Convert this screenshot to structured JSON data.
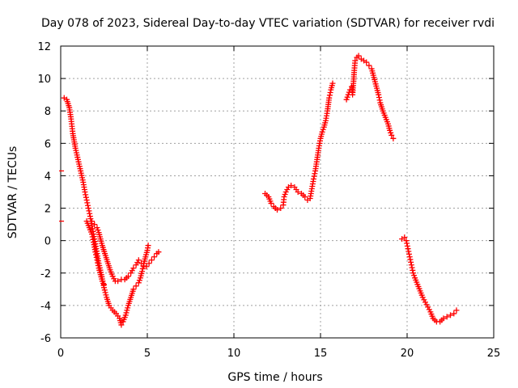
{
  "chart_data": {
    "type": "scatter",
    "title": "Day 078 of 2023, Sidereal Day-to-day VTEC variation (SDTVAR) for receiver rvdi",
    "xlabel": "GPS time / hours",
    "ylabel": "SDTVAR / TECUs",
    "xlim": [
      0,
      25
    ],
    "ylim": [
      -6,
      12
    ],
    "xticks": [
      0,
      5,
      10,
      15,
      20,
      25
    ],
    "yticks": [
      -6,
      -4,
      -2,
      0,
      2,
      4,
      6,
      8,
      10,
      12
    ],
    "xtick_labels": [
      "0",
      "5",
      "10",
      "15",
      "20",
      "25"
    ],
    "ytick_labels": [
      "-6",
      "-4",
      "-2",
      "0",
      "2",
      "4",
      "6",
      "8",
      "10",
      "12"
    ],
    "grid": true,
    "marker": "+",
    "color": "#ff0000",
    "isolated_points": [
      {
        "x": 0.05,
        "y": 4.3
      },
      {
        "x": 0.05,
        "y": 1.2
      }
    ],
    "segments": [
      {
        "name": "arc-1a",
        "points": [
          [
            0.2,
            8.8
          ],
          [
            0.35,
            8.7
          ],
          [
            0.5,
            8.2
          ],
          [
            0.6,
            7.5
          ],
          [
            0.7,
            6.6
          ],
          [
            0.85,
            5.7
          ],
          [
            1.0,
            5.0
          ],
          [
            1.15,
            4.3
          ],
          [
            1.3,
            3.6
          ],
          [
            1.4,
            3.0
          ],
          [
            1.5,
            2.5
          ],
          [
            1.6,
            2.0
          ],
          [
            1.7,
            1.5
          ],
          [
            1.8,
            0.9
          ],
          [
            1.9,
            0.4
          ],
          [
            2.0,
            -0.2
          ],
          [
            2.1,
            -0.8
          ],
          [
            2.2,
            -1.4
          ],
          [
            2.35,
            -2.1
          ],
          [
            2.5,
            -2.9
          ],
          [
            2.65,
            -3.5
          ],
          [
            2.8,
            -4.0
          ],
          [
            3.0,
            -4.3
          ],
          [
            3.2,
            -4.5
          ],
          [
            3.4,
            -4.8
          ],
          [
            3.5,
            -5.2
          ],
          [
            3.6,
            -5.0
          ],
          [
            3.75,
            -4.6
          ],
          [
            3.9,
            -4.0
          ],
          [
            4.05,
            -3.5
          ],
          [
            4.2,
            -3.0
          ],
          [
            4.35,
            -2.8
          ],
          [
            4.5,
            -2.6
          ],
          [
            4.6,
            -2.3
          ],
          [
            4.7,
            -1.9
          ],
          [
            4.8,
            -1.4
          ],
          [
            4.9,
            -1.0
          ],
          [
            5.0,
            -0.6
          ],
          [
            5.05,
            -0.3
          ]
        ]
      },
      {
        "name": "arc-1b",
        "points": [
          [
            1.8,
            1.2
          ],
          [
            1.95,
            1.0
          ],
          [
            2.1,
            0.8
          ],
          [
            2.2,
            0.5
          ],
          [
            2.3,
            0.1
          ],
          [
            2.4,
            -0.3
          ],
          [
            2.55,
            -0.8
          ],
          [
            2.7,
            -1.3
          ],
          [
            2.85,
            -1.8
          ],
          [
            3.0,
            -2.2
          ],
          [
            3.15,
            -2.5
          ],
          [
            3.3,
            -2.5
          ],
          [
            3.5,
            -2.4
          ],
          [
            3.7,
            -2.4
          ],
          [
            3.9,
            -2.2
          ],
          [
            4.05,
            -2.0
          ],
          [
            4.2,
            -1.7
          ],
          [
            4.35,
            -1.5
          ],
          [
            4.5,
            -1.2
          ],
          [
            4.65,
            -1.4
          ],
          [
            4.8,
            -1.6
          ],
          [
            4.95,
            -1.6
          ],
          [
            5.1,
            -1.4
          ],
          [
            5.25,
            -1.2
          ],
          [
            5.4,
            -1.0
          ],
          [
            5.55,
            -0.8
          ],
          [
            5.65,
            -0.7
          ]
        ]
      },
      {
        "name": "arc-1c",
        "points": [
          [
            1.5,
            1.2
          ],
          [
            1.65,
            0.8
          ],
          [
            1.8,
            0.4
          ],
          [
            1.9,
            -0.1
          ],
          [
            2.0,
            -0.7
          ],
          [
            2.1,
            -1.2
          ],
          [
            2.2,
            -1.7
          ],
          [
            2.3,
            -2.1
          ],
          [
            2.4,
            -2.5
          ],
          [
            2.5,
            -2.7
          ]
        ]
      },
      {
        "name": "arc-2",
        "points": [
          [
            11.8,
            2.9
          ],
          [
            12.0,
            2.7
          ],
          [
            12.15,
            2.3
          ],
          [
            12.3,
            2.1
          ],
          [
            12.5,
            1.9
          ],
          [
            12.7,
            2.0
          ],
          [
            12.85,
            2.2
          ],
          [
            12.9,
            2.7
          ],
          [
            13.0,
            3.0
          ],
          [
            13.15,
            3.3
          ],
          [
            13.3,
            3.4
          ],
          [
            13.5,
            3.3
          ],
          [
            13.7,
            3.0
          ],
          [
            13.9,
            2.9
          ],
          [
            14.1,
            2.7
          ],
          [
            14.25,
            2.5
          ],
          [
            14.4,
            2.6
          ],
          [
            14.5,
            3.2
          ],
          [
            14.6,
            3.8
          ],
          [
            14.7,
            4.3
          ],
          [
            14.8,
            5.0
          ],
          [
            14.9,
            5.7
          ],
          [
            15.0,
            6.3
          ],
          [
            15.1,
            6.7
          ],
          [
            15.2,
            7.0
          ],
          [
            15.3,
            7.4
          ],
          [
            15.4,
            8.0
          ],
          [
            15.5,
            8.8
          ],
          [
            15.6,
            9.3
          ],
          [
            15.7,
            9.7
          ]
        ]
      },
      {
        "name": "arc-3",
        "points": [
          [
            16.5,
            8.7
          ],
          [
            16.6,
            9.0
          ],
          [
            16.7,
            9.3
          ],
          [
            16.8,
            9.5
          ],
          [
            16.85,
            9.0
          ],
          [
            16.9,
            9.7
          ],
          [
            16.95,
            10.5
          ],
          [
            17.0,
            11.1
          ],
          [
            17.1,
            11.3
          ],
          [
            17.2,
            11.4
          ],
          [
            17.35,
            11.2
          ],
          [
            17.5,
            11.1
          ],
          [
            17.65,
            11.0
          ],
          [
            17.8,
            10.8
          ],
          [
            17.95,
            10.6
          ],
          [
            18.05,
            10.2
          ],
          [
            18.15,
            9.8
          ],
          [
            18.25,
            9.4
          ],
          [
            18.35,
            9.0
          ],
          [
            18.45,
            8.5
          ],
          [
            18.6,
            8.0
          ],
          [
            18.75,
            7.6
          ],
          [
            18.9,
            7.2
          ],
          [
            19.0,
            6.8
          ],
          [
            19.1,
            6.5
          ],
          [
            19.2,
            6.3
          ]
        ]
      },
      {
        "name": "arc-4",
        "points": [
          [
            19.7,
            0.1
          ],
          [
            19.85,
            0.2
          ],
          [
            19.95,
            0.0
          ],
          [
            20.05,
            -0.5
          ],
          [
            20.15,
            -1.0
          ],
          [
            20.25,
            -1.5
          ],
          [
            20.35,
            -2.0
          ],
          [
            20.45,
            -2.3
          ],
          [
            20.6,
            -2.7
          ],
          [
            20.75,
            -3.1
          ],
          [
            20.9,
            -3.5
          ],
          [
            21.05,
            -3.8
          ],
          [
            21.2,
            -4.1
          ],
          [
            21.35,
            -4.4
          ],
          [
            21.5,
            -4.8
          ],
          [
            21.7,
            -5.0
          ],
          [
            21.9,
            -5.0
          ],
          [
            22.1,
            -4.8
          ],
          [
            22.3,
            -4.7
          ],
          [
            22.5,
            -4.6
          ],
          [
            22.7,
            -4.5
          ],
          [
            22.85,
            -4.3
          ]
        ]
      }
    ]
  }
}
